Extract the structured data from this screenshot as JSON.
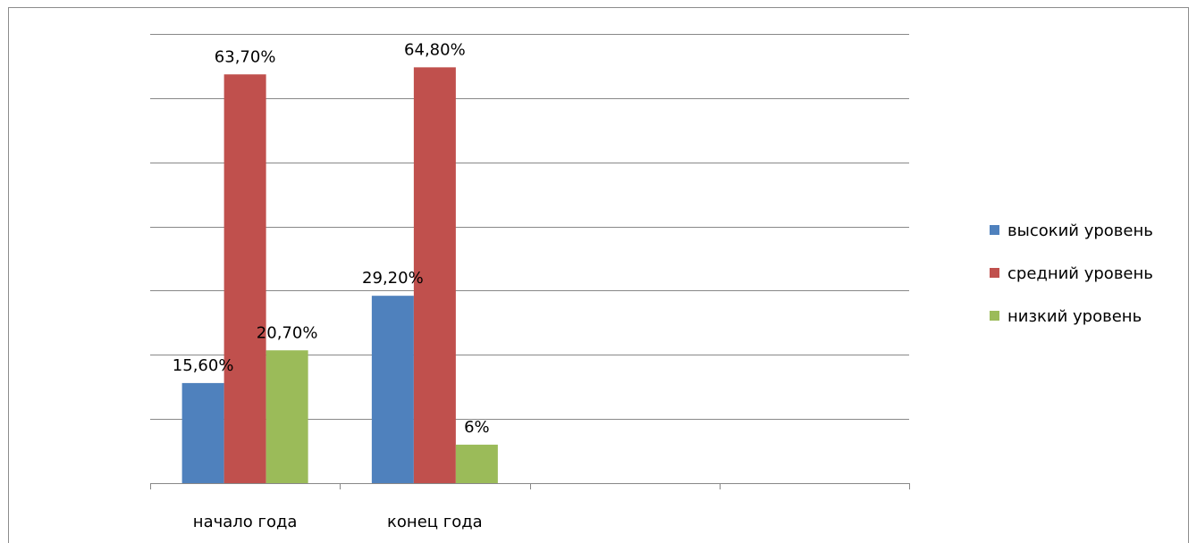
{
  "chart_data": {
    "type": "bar",
    "categories": [
      "начало года",
      "конец года",
      "",
      ""
    ],
    "series": [
      {
        "name": "высокий уровень",
        "color": "#4f81bd",
        "values": [
          15.6,
          29.2,
          null,
          null
        ],
        "labels": [
          "15,60%",
          "29,20%",
          "",
          ""
        ]
      },
      {
        "name": "средний уровень",
        "color": "#c0504d",
        "values": [
          63.7,
          64.8,
          null,
          null
        ],
        "labels": [
          "63,70%",
          "64,80%",
          "",
          ""
        ]
      },
      {
        "name": "низкий уровень",
        "color": "#9bbb59",
        "values": [
          20.7,
          6,
          null,
          null
        ],
        "labels": [
          "20,70%",
          "6%",
          "",
          ""
        ]
      }
    ],
    "ylim": [
      0,
      70
    ],
    "y_gridline_step": 10,
    "y_axis_labels_visible": false,
    "grid": true,
    "legend_position": "right",
    "gridline_color": "#888888"
  }
}
